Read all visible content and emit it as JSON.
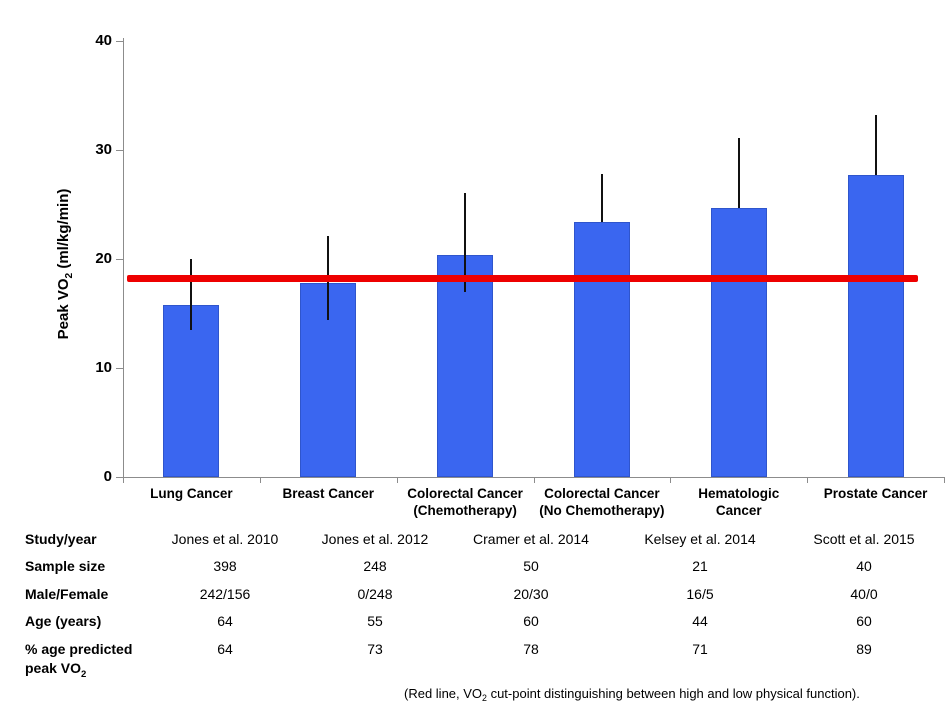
{
  "chart_data": {
    "type": "bar",
    "title": "",
    "xlabel": "",
    "ylabel": "Peak VO2 (ml/kg/min)",
    "ylabel_prefix": "Peak VO",
    "ylabel_sub": "2",
    "ylabel_suffix": " (ml/kg/min)",
    "ylim": [
      0,
      40
    ],
    "y_ticks": [
      0,
      10,
      20,
      30,
      40
    ],
    "grid": "off",
    "legend": "none",
    "bar_color": "#3a66f0",
    "categories": [
      [
        "Lung Cancer"
      ],
      [
        "Breast Cancer"
      ],
      [
        "Colorectal Cancer",
        "(Chemotherapy)"
      ],
      [
        "Colorectal Cancer",
        "(No Chemotherapy)"
      ],
      [
        "Hematologic",
        "Cancer"
      ],
      [
        "Prostate Cancer"
      ]
    ],
    "values": [
      15.8,
      17.8,
      20.4,
      23.4,
      24.7,
      27.7
    ],
    "error_high": [
      20.0,
      22.1,
      26.1,
      27.8,
      31.1,
      33.2
    ],
    "error_low_visible": [
      13.5,
      14.4,
      17.0,
      23.4,
      24.7,
      27.7
    ],
    "reference_line": {
      "value": 18.3,
      "color": "#ee0000",
      "caption_prefix": "(Red line, VO",
      "caption_sub": "2",
      "caption_suffix": " cut-point distinguishing between high and low physical function)."
    }
  },
  "table": {
    "rows": [
      {
        "label": "Study/year",
        "values": [
          "Jones et al. 2010",
          "Jones et al. 2012",
          "Cramer et al. 2014",
          "Kelsey et al. 2014",
          "Scott et al. 2015"
        ]
      },
      {
        "label": "Sample size",
        "values": [
          "398",
          "248",
          "50",
          "21",
          "40"
        ]
      },
      {
        "label": "Male/Female",
        "values": [
          "242/156",
          "0/248",
          "20/30",
          "16/5",
          "40/0"
        ]
      },
      {
        "label": "Age (years)",
        "values": [
          "64",
          "55",
          "60",
          "44",
          "60"
        ]
      },
      {
        "label": "% age predicted",
        "label2_prefix": "peak VO",
        "label2_sub": "2",
        "values": [
          "64",
          "73",
          "78",
          "71",
          "89"
        ]
      }
    ]
  }
}
